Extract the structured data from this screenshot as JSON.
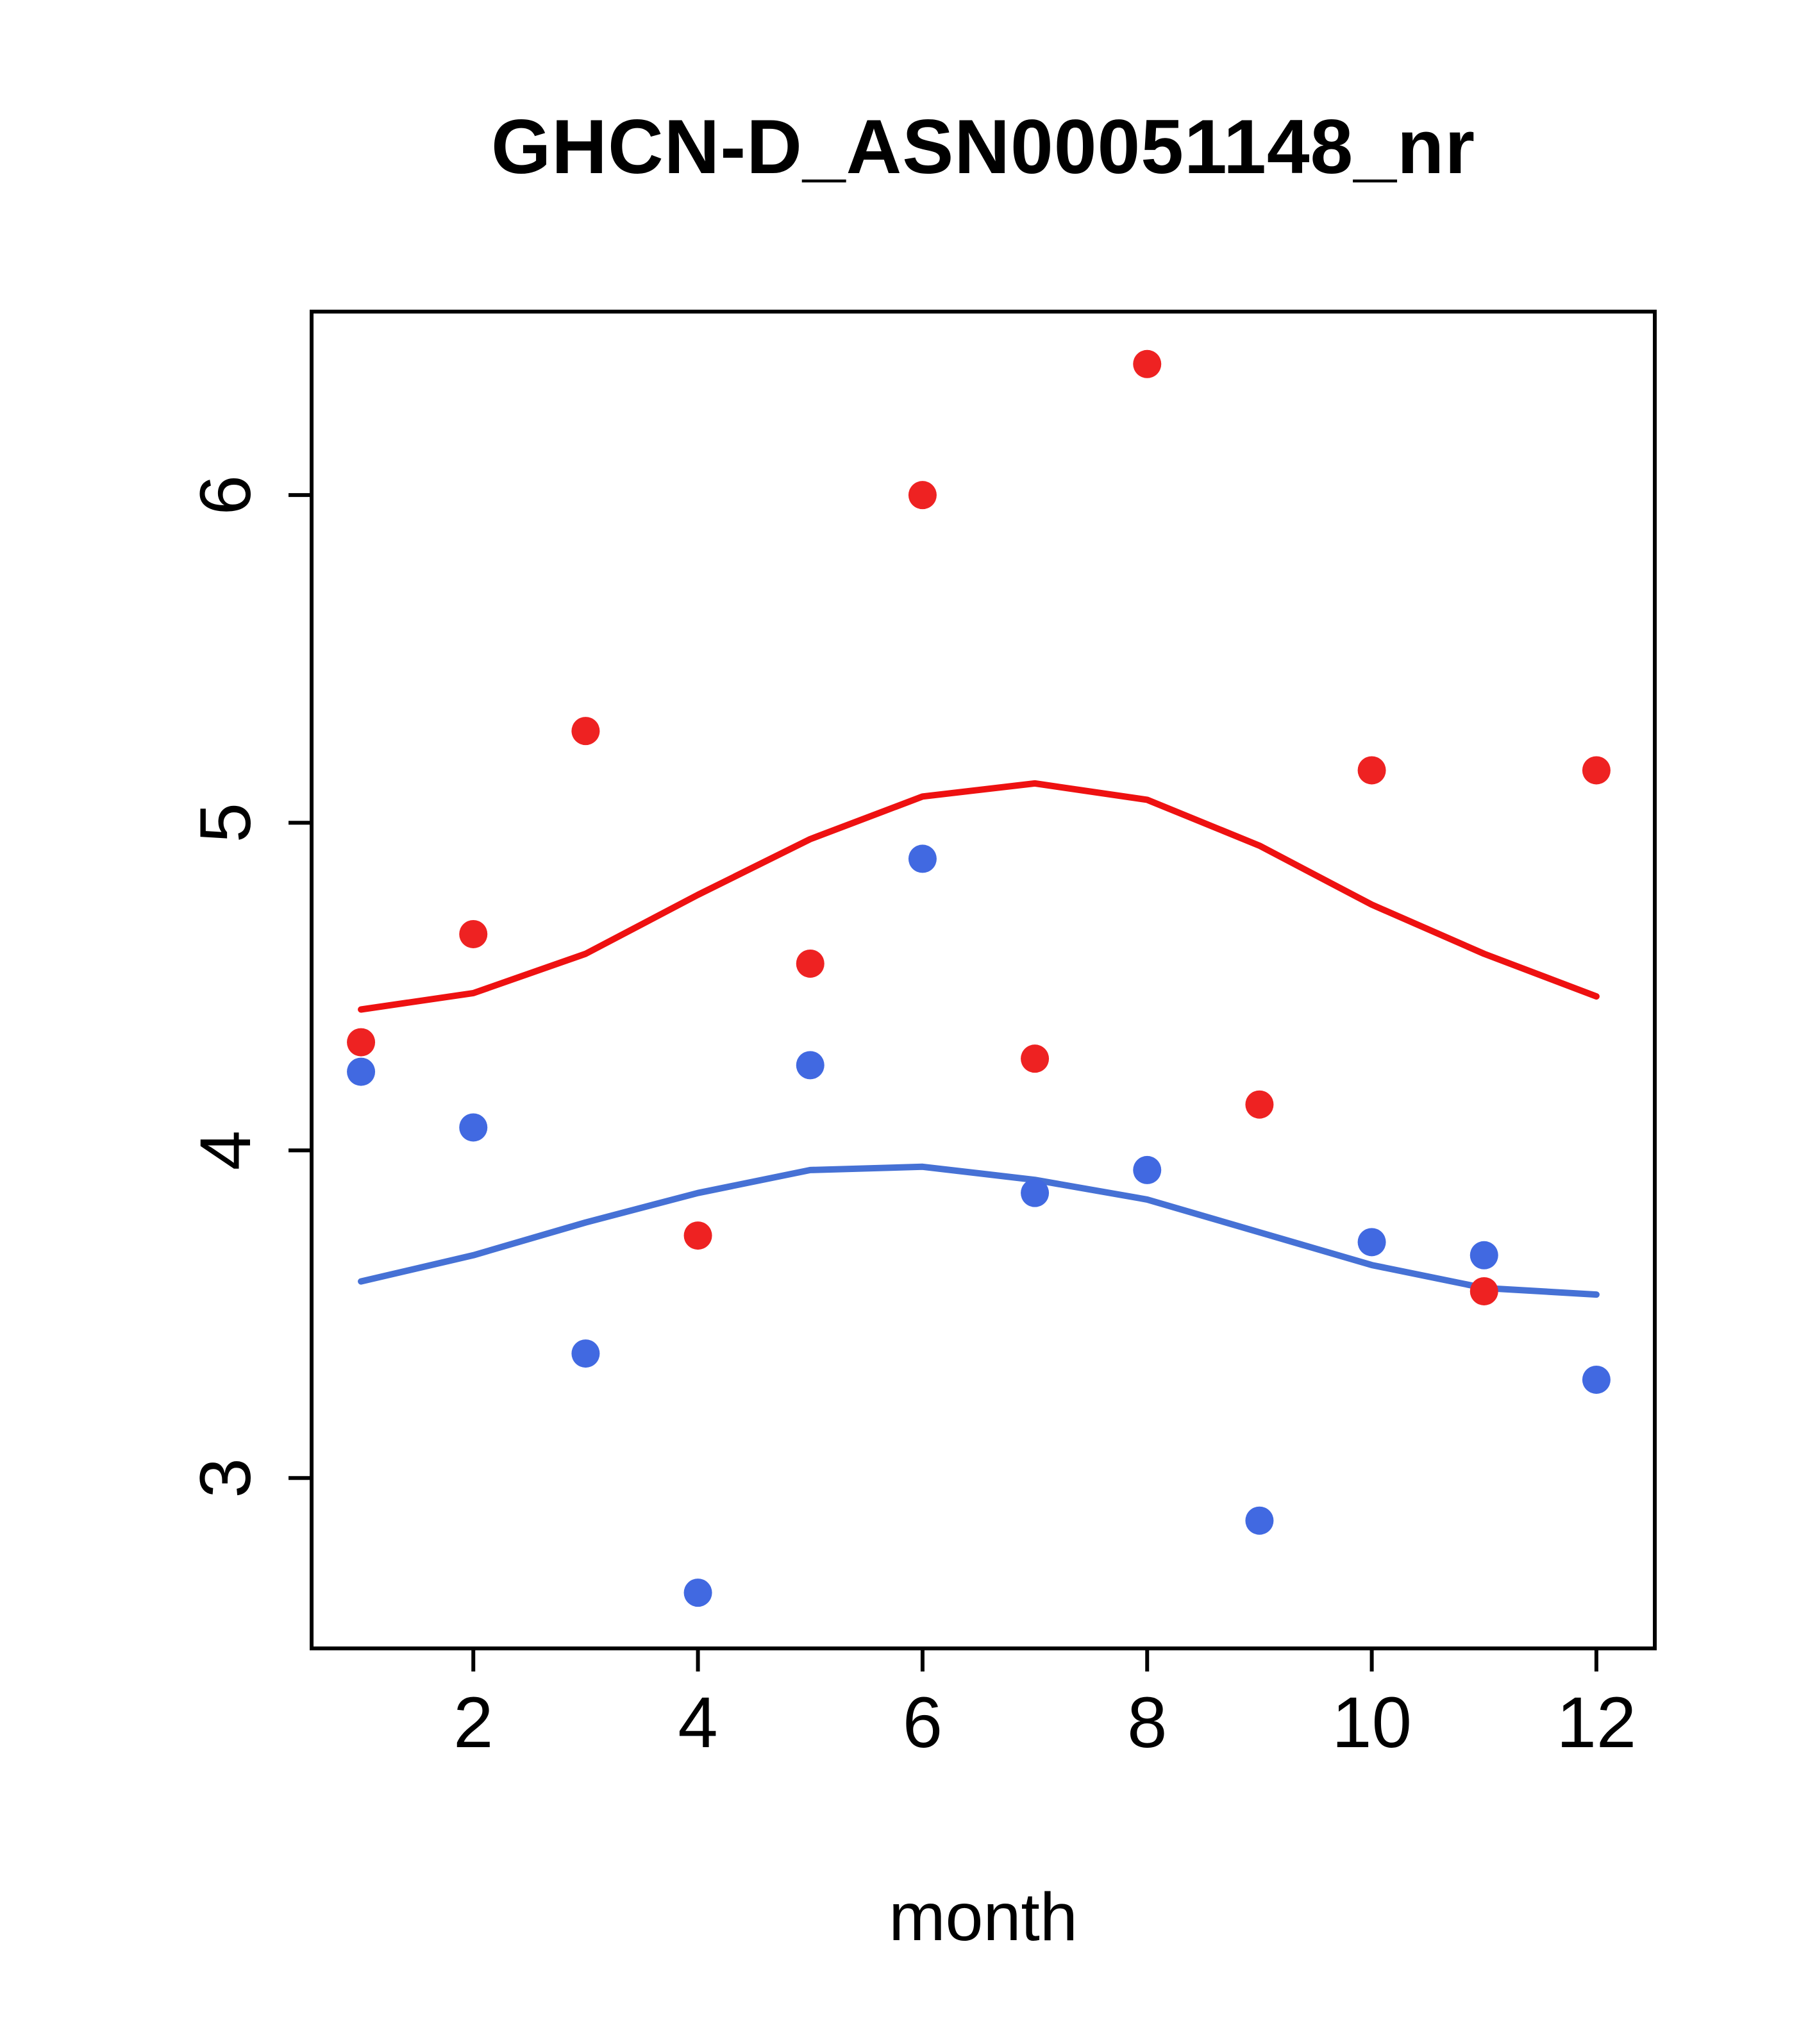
{
  "chart_data": {
    "type": "scatter",
    "title": "GHCN-D_ASN00051148_nr",
    "xlabel": "month",
    "ylabel": "",
    "xlim": [
      0.56,
      12.52
    ],
    "ylim": [
      2.48,
      6.56
    ],
    "x_ticks": [
      2,
      4,
      6,
      8,
      10,
      12
    ],
    "y_ticks": [
      3,
      4,
      5,
      6
    ],
    "x": [
      1,
      2,
      3,
      4,
      5,
      6,
      7,
      8,
      9,
      10,
      11,
      12
    ],
    "series": [
      {
        "name": "red-points",
        "kind": "points",
        "color": "#ee2222",
        "values": [
          4.33,
          4.66,
          5.28,
          3.74,
          4.57,
          6.0,
          4.28,
          6.4,
          4.14,
          5.16,
          3.57,
          5.16
        ]
      },
      {
        "name": "blue-points",
        "kind": "points",
        "color": "#4169e1",
        "values": [
          4.24,
          4.07,
          3.38,
          2.65,
          4.26,
          4.89,
          3.87,
          3.94,
          2.87,
          3.72,
          3.68,
          3.3
        ]
      },
      {
        "name": "red-smooth-line",
        "kind": "line",
        "color": "#ee1111",
        "values": [
          4.43,
          4.48,
          4.6,
          4.78,
          4.95,
          5.08,
          5.12,
          5.07,
          4.93,
          4.75,
          4.6,
          4.47
        ]
      },
      {
        "name": "blue-smooth-line",
        "kind": "line",
        "color": "#4671d5",
        "values": [
          3.6,
          3.68,
          3.78,
          3.87,
          3.94,
          3.95,
          3.91,
          3.85,
          3.75,
          3.65,
          3.58,
          3.56
        ]
      }
    ],
    "layout": {
      "grid": false,
      "legend": "none",
      "axis_color": "#000000",
      "background": "#ffffff"
    }
  }
}
